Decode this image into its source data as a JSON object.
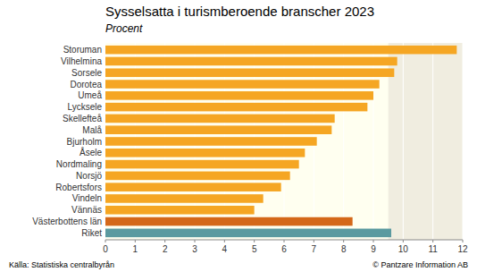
{
  "chart_data": {
    "type": "bar",
    "orientation": "horizontal",
    "title": "Sysselsatta i turismberoende branscher 2023",
    "subtitle": "Procent",
    "categories": [
      "Riket",
      "Västerbottens län",
      "Vännäs",
      "Vindeln",
      "Robertsfors",
      "Norsjö",
      "Nordmaling",
      "Åsele",
      "Bjurholm",
      "Malå",
      "Skellefteå",
      "Lycksele",
      "Umeå",
      "Dorotea",
      "Sorsele",
      "Vilhelmina",
      "Storuman"
    ],
    "values": [
      9.6,
      8.3,
      5.0,
      5.3,
      5.9,
      6.2,
      6.5,
      6.7,
      7.1,
      7.6,
      7.7,
      8.8,
      9.0,
      9.2,
      9.7,
      9.8,
      11.8
    ],
    "colors": [
      "#5b9aa0",
      "#d4681a",
      "#f5a623",
      "#f5a623",
      "#f5a623",
      "#f5a623",
      "#f5a623",
      "#f5a623",
      "#f5a623",
      "#f5a623",
      "#f5a623",
      "#f5a623",
      "#f5a623",
      "#f5a623",
      "#f5a623",
      "#f5a623",
      "#f5a623"
    ],
    "xlim": [
      0,
      12
    ],
    "xticks": [
      0,
      1,
      2,
      3,
      4,
      5,
      6,
      7,
      8,
      9,
      10,
      11,
      12
    ],
    "shaded_from": 9.5,
    "grid": true,
    "annotations": [
      "Källa: Statistiska centralbyrån",
      "© Pantzare Information AB"
    ]
  }
}
